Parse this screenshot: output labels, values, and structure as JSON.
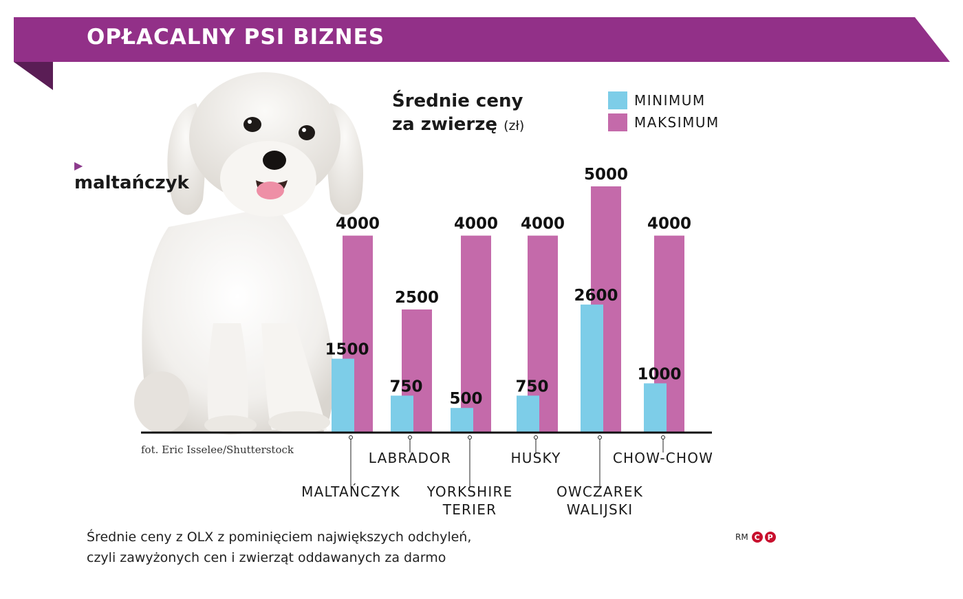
{
  "banner": {
    "title": "OPŁACALNY PSI BIZNES",
    "color": "#923088",
    "shadow_color": "#5a1d55"
  },
  "chart_title": {
    "line1": "Średnie ceny",
    "line2": "za zwierzę",
    "unit": "(zł)"
  },
  "legend": [
    {
      "label": "MINIMUM",
      "color": "#7dcde8"
    },
    {
      "label": "MAKSIMUM",
      "color": "#c46aaa"
    }
  ],
  "dog_label": {
    "arrow": "▶",
    "name": "maltańczyk"
  },
  "photo_credit": "fot. Eric Isselee/Shutterstock",
  "footnote": {
    "line1": "Średnie ceny z OLX z pominięciem największych odchyleń,",
    "line2": "czyli zawyżonych cen i zwierząt oddawanych za darmo"
  },
  "rm": {
    "text": "RM",
    "c": "C",
    "p": "P"
  },
  "chart_data": {
    "type": "bar",
    "title": "Średnie ceny za zwierzę (zł)",
    "categories": [
      [
        "MALTAŃCZYK"
      ],
      [
        "LABRADOR"
      ],
      [
        "YORKSHIRE",
        "TERIER"
      ],
      [
        "HUSKY"
      ],
      [
        "OWCZAREK",
        "WALIJSKI"
      ],
      [
        "CHOW-CHOW"
      ]
    ],
    "label_tier": [
      "low",
      "high",
      "low",
      "high",
      "low",
      "high"
    ],
    "series": [
      {
        "name": "MINIMUM",
        "color": "#7dcde8",
        "values": [
          1500,
          750,
          500,
          750,
          2600,
          1000
        ],
        "labels": [
          "1500",
          "750",
          "500",
          "750",
          "2600",
          "1000"
        ]
      },
      {
        "name": "MAKSIMUM",
        "color": "#c46aaa",
        "values": [
          4000,
          2500,
          4000,
          4000,
          5000,
          4000
        ],
        "labels": [
          "4000",
          "2500",
          "4000",
          "4000",
          "5000",
          "4000"
        ]
      }
    ],
    "ylim": [
      0,
      5000
    ],
    "grid": false,
    "legend": "top-right"
  }
}
